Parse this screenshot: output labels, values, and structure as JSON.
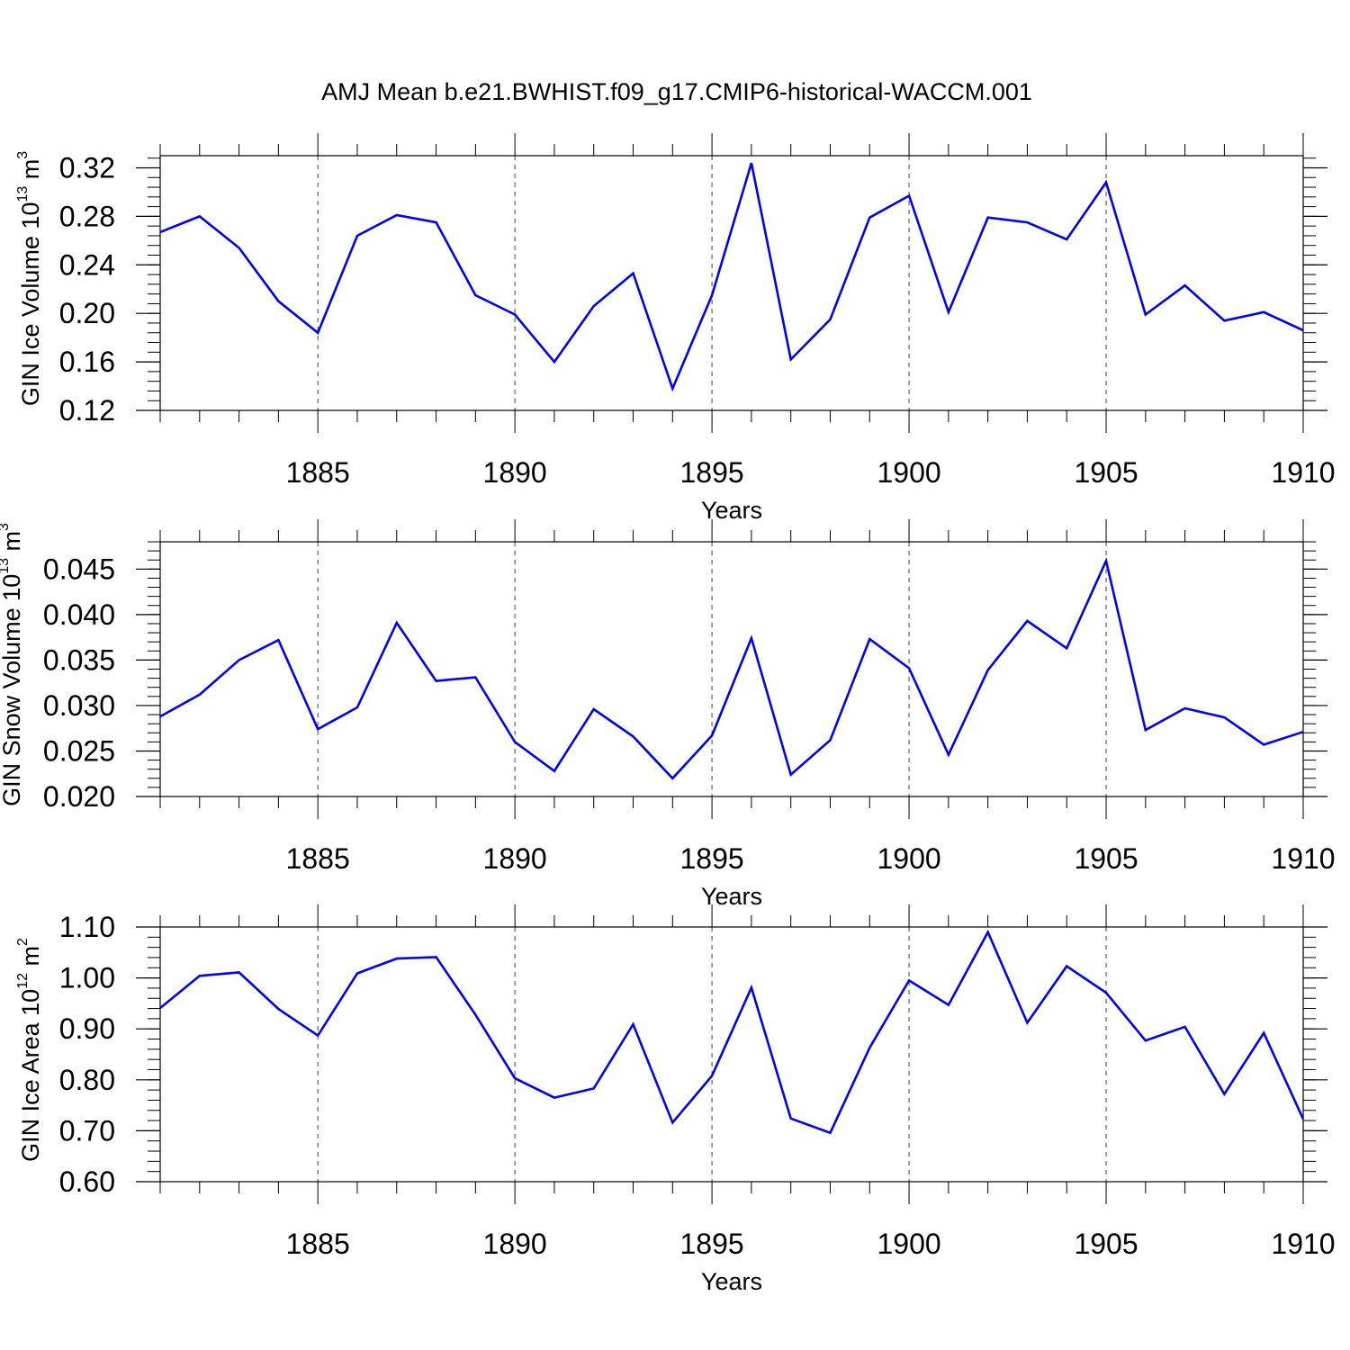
{
  "figure": {
    "title": "AMJ Mean b.e21.BWHIST.f09_g17.CMIP6-historical-WACCM.001",
    "line_color": "#0000ff"
  },
  "chart_data": [
    {
      "type": "line",
      "title": "",
      "xlabel": "Years",
      "ylabel": {
        "pre": "GIN Ice Volume 10",
        "exp": "13",
        "mid": " m",
        "unit_exp": "3"
      },
      "xlim": [
        1881,
        1910
      ],
      "ylim": [
        0.12,
        0.33
      ],
      "xticks": [
        1885,
        1890,
        1895,
        1900,
        1905,
        1910
      ],
      "yticks": [
        0.12,
        0.16,
        0.2,
        0.24,
        0.28,
        0.32
      ],
      "ytick_labels": [
        "0.12",
        "0.16",
        "0.20",
        "0.24",
        "0.28",
        "0.32"
      ],
      "ytick_minor_step": 0.008,
      "grid_x": true,
      "x": [
        1881,
        1882,
        1883,
        1884,
        1885,
        1886,
        1887,
        1888,
        1889,
        1890,
        1891,
        1892,
        1893,
        1894,
        1895,
        1896,
        1897,
        1898,
        1899,
        1900,
        1901,
        1902,
        1903,
        1904,
        1905,
        1906,
        1907,
        1908,
        1909,
        1910
      ],
      "series": [
        {
          "name": "GIN Ice Volume",
          "color": "#0000ff",
          "values": [
            0.267,
            0.28,
            0.254,
            0.21,
            0.184,
            0.264,
            0.281,
            0.275,
            0.215,
            0.199,
            0.16,
            0.206,
            0.233,
            0.138,
            0.215,
            0.324,
            0.162,
            0.195,
            0.279,
            0.297,
            0.201,
            0.279,
            0.275,
            0.261,
            0.308,
            0.199,
            0.223,
            0.194,
            0.201,
            0.186
          ]
        }
      ]
    },
    {
      "type": "line",
      "title": "",
      "xlabel": "Years",
      "ylabel": {
        "pre": "GIN Snow Volume 10",
        "exp": "13",
        "mid": " m",
        "unit_exp": "3"
      },
      "xlim": [
        1881,
        1910
      ],
      "ylim": [
        0.02,
        0.048
      ],
      "xticks": [
        1885,
        1890,
        1895,
        1900,
        1905,
        1910
      ],
      "yticks": [
        0.02,
        0.025,
        0.03,
        0.035,
        0.04,
        0.045
      ],
      "ytick_labels": [
        "0.020",
        "0.025",
        "0.030",
        "0.035",
        "0.040",
        "0.045"
      ],
      "ytick_minor_step": 0.001,
      "grid_x": true,
      "x": [
        1881,
        1882,
        1883,
        1884,
        1885,
        1886,
        1887,
        1888,
        1889,
        1890,
        1891,
        1892,
        1893,
        1894,
        1895,
        1896,
        1897,
        1898,
        1899,
        1900,
        1901,
        1902,
        1903,
        1904,
        1905,
        1906,
        1907,
        1908,
        1909,
        1910
      ],
      "series": [
        {
          "name": "GIN Snow Volume",
          "color": "#0000ff",
          "values": [
            0.0288,
            0.0312,
            0.035,
            0.0372,
            0.0274,
            0.0298,
            0.0391,
            0.0327,
            0.0331,
            0.026,
            0.0228,
            0.0296,
            0.0266,
            0.022,
            0.0267,
            0.0374,
            0.0224,
            0.0262,
            0.0373,
            0.0341,
            0.0246,
            0.0339,
            0.0393,
            0.0363,
            0.0459,
            0.0273,
            0.0297,
            0.0287,
            0.0257,
            0.0271
          ]
        }
      ]
    },
    {
      "type": "line",
      "title": "",
      "xlabel": "Years",
      "ylabel": {
        "pre": "GIN Ice Area 10",
        "exp": "12",
        "mid": " m",
        "unit_exp": "2"
      },
      "xlim": [
        1881,
        1910
      ],
      "ylim": [
        0.6,
        1.1
      ],
      "xticks": [
        1885,
        1890,
        1895,
        1900,
        1905,
        1910
      ],
      "yticks": [
        0.6,
        0.7,
        0.8,
        0.9,
        1.0,
        1.1
      ],
      "ytick_labels": [
        "0.60",
        "0.70",
        "0.80",
        "0.90",
        "1.00",
        "1.10"
      ],
      "ytick_minor_step": 0.02,
      "grid_x": true,
      "x": [
        1881,
        1882,
        1883,
        1884,
        1885,
        1886,
        1887,
        1888,
        1889,
        1890,
        1891,
        1892,
        1893,
        1894,
        1895,
        1896,
        1897,
        1898,
        1899,
        1900,
        1901,
        1902,
        1903,
        1904,
        1905,
        1906,
        1907,
        1908,
        1909,
        1910
      ],
      "series": [
        {
          "name": "GIN Ice Area",
          "color": "#0000ff",
          "values": [
            0.941,
            1.004,
            1.011,
            0.939,
            0.887,
            1.009,
            1.038,
            1.041,
            0.928,
            0.803,
            0.765,
            0.783,
            0.909,
            0.716,
            0.808,
            0.981,
            0.724,
            0.696,
            0.863,
            0.995,
            0.947,
            1.09,
            0.912,
            1.023,
            0.971,
            0.877,
            0.904,
            0.772,
            0.892,
            0.723
          ]
        }
      ]
    }
  ]
}
